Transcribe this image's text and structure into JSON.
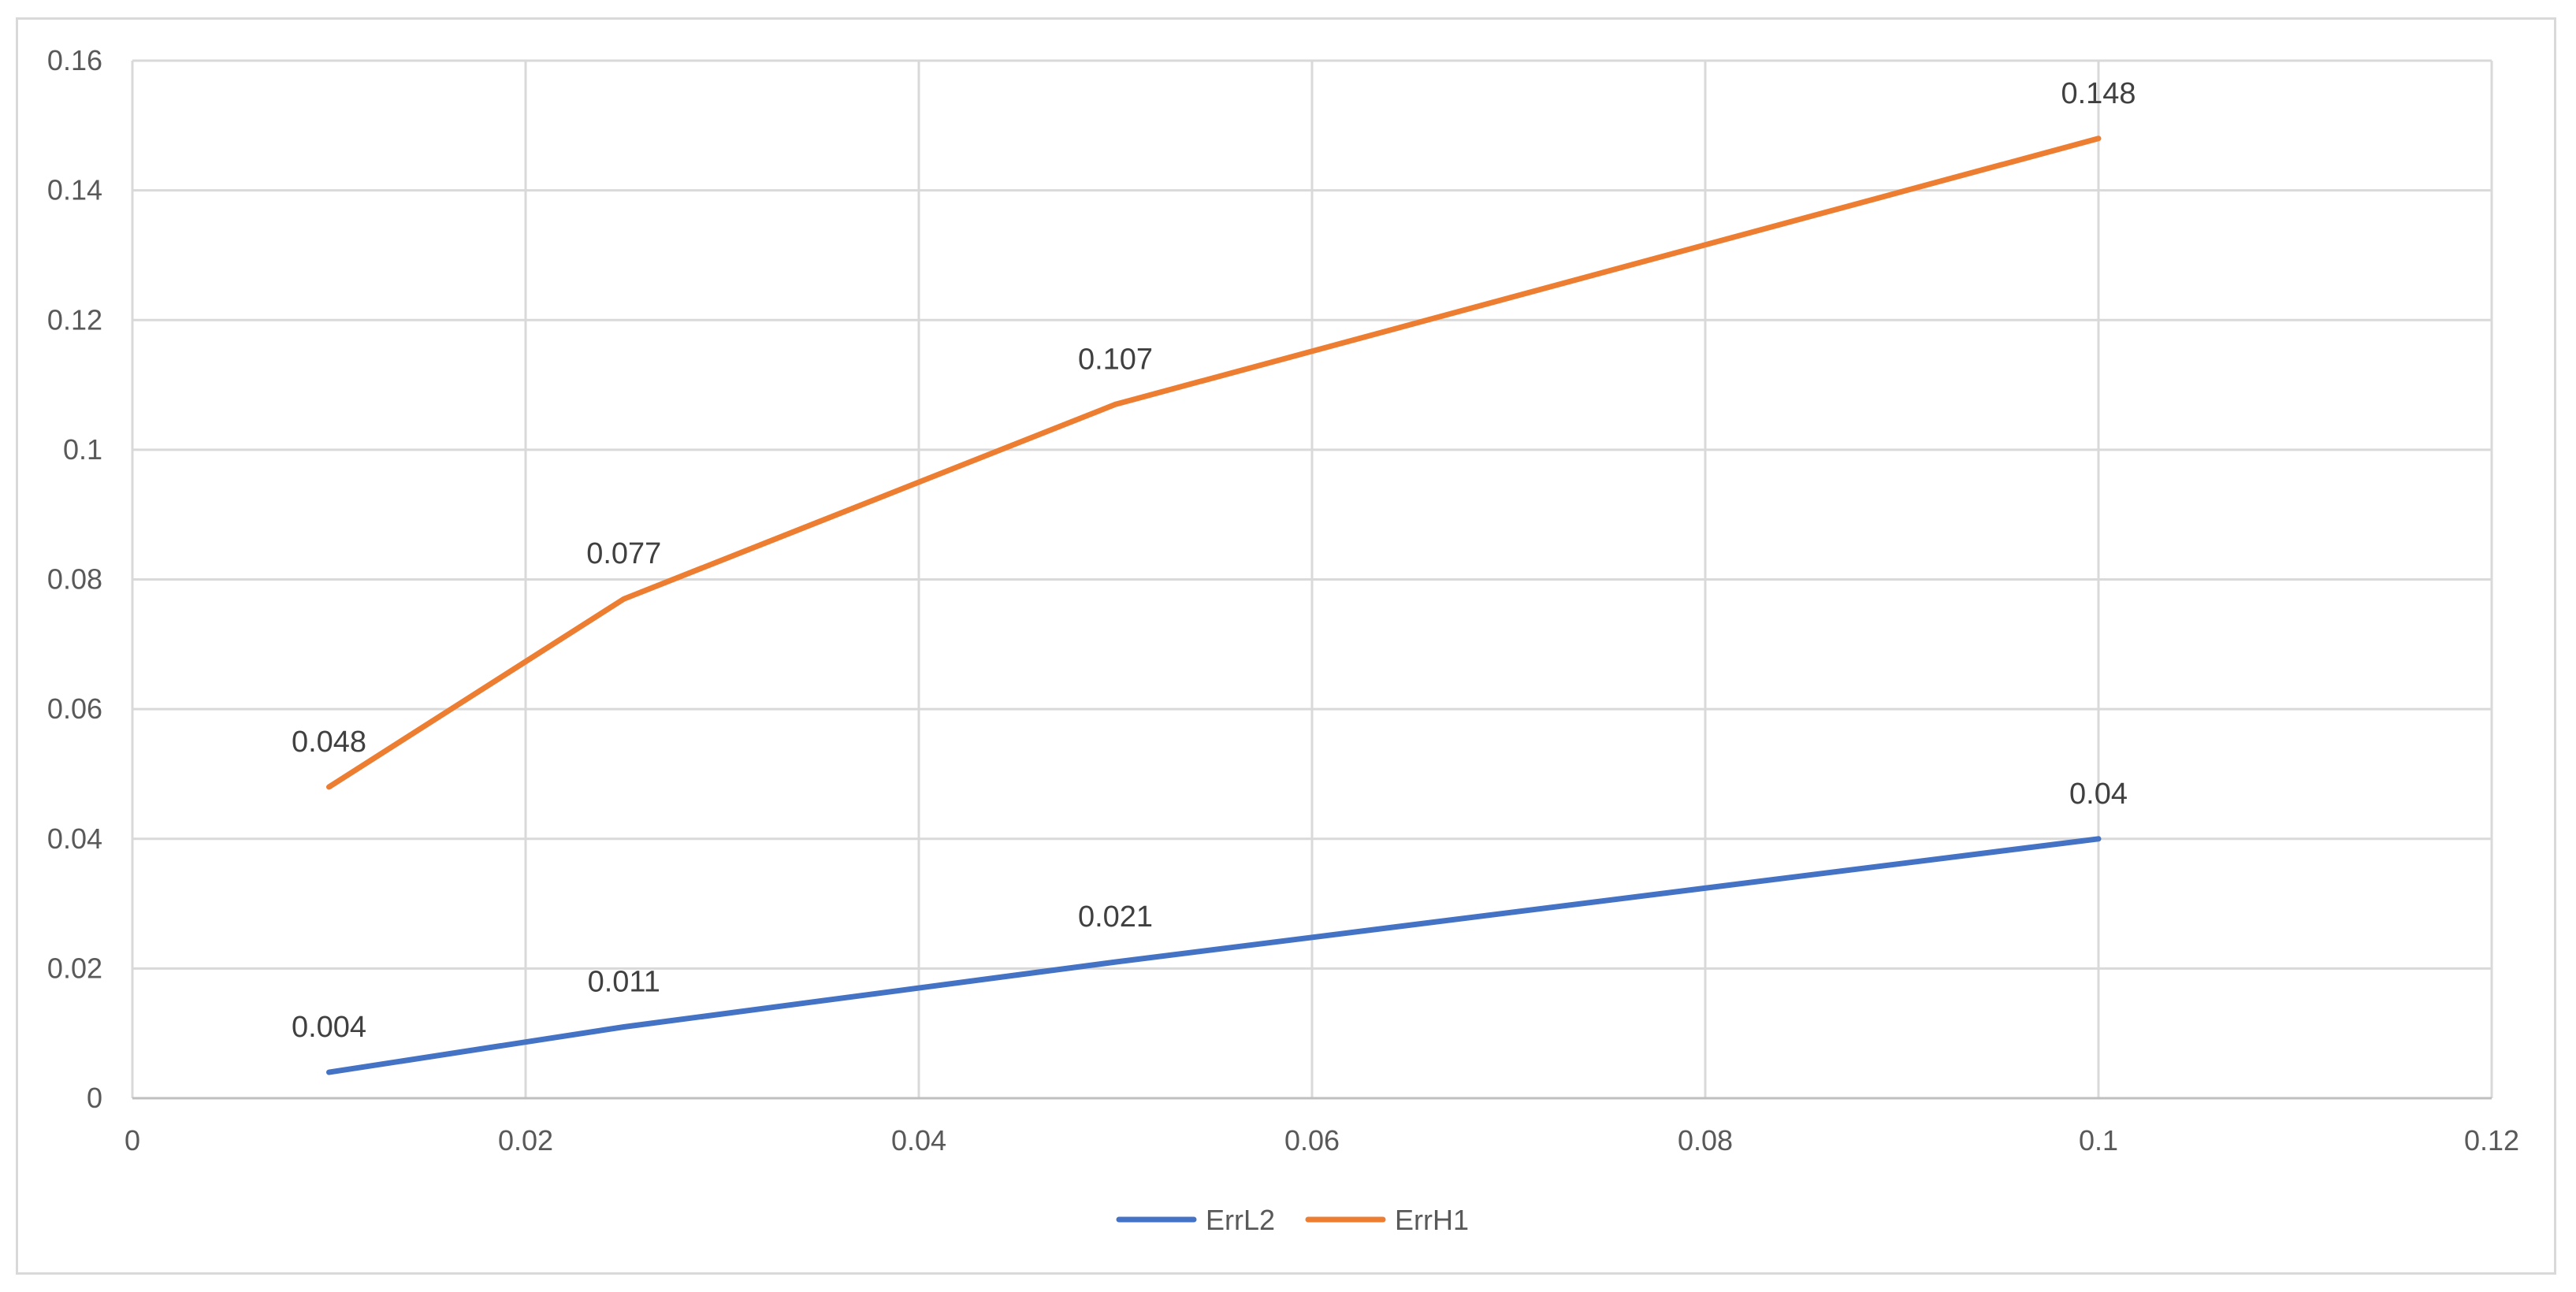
{
  "chart_data": {
    "type": "line",
    "title": "",
    "xlabel": "",
    "ylabel": "",
    "xlim": [
      0,
      0.12
    ],
    "ylim": [
      0,
      0.16
    ],
    "x_ticks": [
      0,
      0.02,
      0.04,
      0.06,
      0.08,
      0.1,
      0.12
    ],
    "y_ticks": [
      0,
      0.02,
      0.04,
      0.06,
      0.08,
      0.1,
      0.12,
      0.14,
      0.16
    ],
    "x_tick_labels": [
      "0",
      "0.02",
      "0.04",
      "0.06",
      "0.08",
      "0.1",
      "0.12"
    ],
    "y_tick_labels": [
      "0",
      "0.02",
      "0.04",
      "0.06",
      "0.08",
      "0.1",
      "0.12",
      "0.14",
      "0.16"
    ],
    "grid": true,
    "legend_position": "bottom",
    "x": [
      0.01,
      0.025,
      0.05,
      0.1
    ],
    "series": [
      {
        "name": "ErrL2",
        "color": "#4472c4",
        "values": [
          0.004,
          0.011,
          0.021,
          0.04
        ],
        "labels": [
          "0.004",
          "0.011",
          "0.021",
          "0.04"
        ]
      },
      {
        "name": "ErrH1",
        "color": "#ed7d31",
        "values": [
          0.048,
          0.077,
          0.107,
          0.148
        ],
        "labels": [
          "0.048",
          "0.077",
          "0.107",
          "0.148"
        ]
      }
    ]
  }
}
